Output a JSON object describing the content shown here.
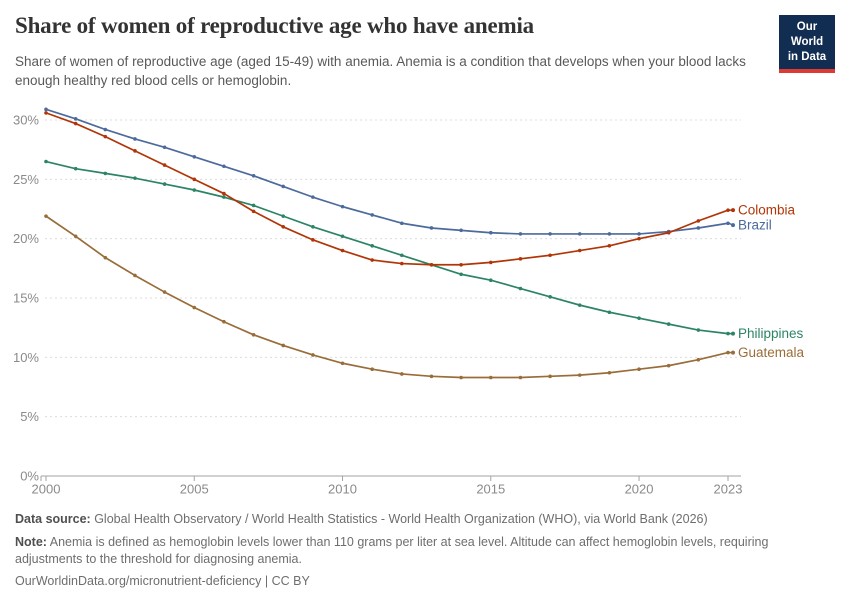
{
  "header": {
    "title": "Share of women of reproductive age who have anemia",
    "subtitle": "Share of women of reproductive age (aged 15-49) with anemia. Anemia is a condition that develops when your blood lacks enough healthy red blood cells or hemoglobin.",
    "logo": {
      "line1": "Our World",
      "line2": "in Data",
      "bg_color": "#112D51",
      "bar_color": "#DC3A32"
    }
  },
  "chart_data": {
    "type": "line",
    "title": "Share of women of reproductive age who have anemia",
    "x": [
      2000,
      2001,
      2002,
      2003,
      2004,
      2005,
      2006,
      2007,
      2008,
      2009,
      2010,
      2011,
      2012,
      2013,
      2014,
      2015,
      2016,
      2017,
      2018,
      2019,
      2020,
      2021,
      2022,
      2023
    ],
    "series": [
      {
        "name": "Colombia",
        "color": "#B13507",
        "values": [
          30.6,
          29.7,
          28.6,
          27.4,
          26.2,
          25.0,
          23.8,
          22.3,
          21.0,
          19.9,
          19.0,
          18.2,
          17.9,
          17.8,
          17.8,
          18.0,
          18.3,
          18.6,
          19.0,
          19.4,
          20.0,
          20.5,
          21.5,
          22.4
        ]
      },
      {
        "name": "Brazil",
        "color": "#4C6A9C",
        "values": [
          30.9,
          30.1,
          29.2,
          28.4,
          27.7,
          26.9,
          26.1,
          25.3,
          24.4,
          23.5,
          22.7,
          22.0,
          21.3,
          20.9,
          20.7,
          20.5,
          20.4,
          20.4,
          20.4,
          20.4,
          20.4,
          20.6,
          20.9,
          21.3
        ]
      },
      {
        "name": "Philippines",
        "color": "#2C8465",
        "values": [
          26.5,
          25.9,
          25.5,
          25.1,
          24.6,
          24.1,
          23.5,
          22.8,
          21.9,
          21.0,
          20.2,
          19.4,
          18.6,
          17.8,
          17.0,
          16.5,
          15.8,
          15.1,
          14.4,
          13.8,
          13.3,
          12.8,
          12.3,
          12.0
        ]
      },
      {
        "name": "Guatemala",
        "color": "#996D39",
        "values": [
          21.9,
          20.2,
          18.4,
          16.9,
          15.5,
          14.2,
          13.0,
          11.9,
          11.0,
          10.2,
          9.5,
          9.0,
          8.6,
          8.4,
          8.3,
          8.3,
          8.3,
          8.4,
          8.5,
          8.7,
          9.0,
          9.3,
          9.8,
          10.4
        ]
      }
    ],
    "xticks": [
      2000,
      2005,
      2010,
      2015,
      2020,
      2023
    ],
    "yticks": [
      0,
      5,
      10,
      15,
      20,
      25,
      30
    ],
    "ytick_suffix": "%",
    "xlim": [
      2000,
      2023
    ],
    "ylim": [
      0,
      30
    ],
    "grid": "horizontal-dashed",
    "legend_position": "right-edge-labels",
    "axis_color": "#a3a3a3",
    "grid_color": "#dcdcdc",
    "tick_label_color": "#8a8a8a"
  },
  "footer": {
    "datasource_label": "Data source:",
    "datasource": " Global Health Observatory / World Health Statistics - World Health Organization (WHO), via World Bank (2026)",
    "note_label": "Note:",
    "note": " Anemia is defined as hemoglobin levels lower than 110 grams per liter at sea level. Altitude can affect hemoglobin levels, requiring adjustments to the threshold for diagnosing anemia.",
    "link": "OurWorldinData.org/micronutrient-deficiency | CC BY"
  }
}
